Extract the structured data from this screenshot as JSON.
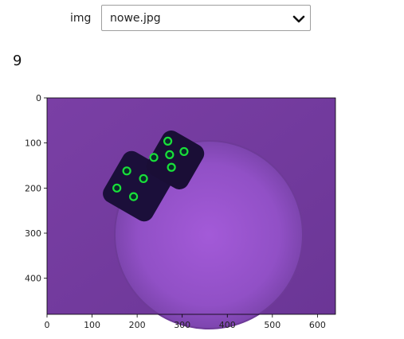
{
  "controls": {
    "img_label": "img",
    "img_select_value": "nowe.jpg",
    "chevron_icon": "chevron-down-icon"
  },
  "output": {
    "count": "9"
  },
  "figure": {
    "image_icon": "dice-photo",
    "x_ticks": [
      "0",
      "100",
      "200",
      "300",
      "400",
      "500",
      "600"
    ],
    "y_ticks": [
      "0",
      "100",
      "200",
      "300",
      "400"
    ],
    "xlim": [
      0,
      640
    ],
    "ylim": [
      480,
      0
    ],
    "colors": {
      "marker": "#19e03a",
      "background": "#7b3fa6"
    }
  }
}
